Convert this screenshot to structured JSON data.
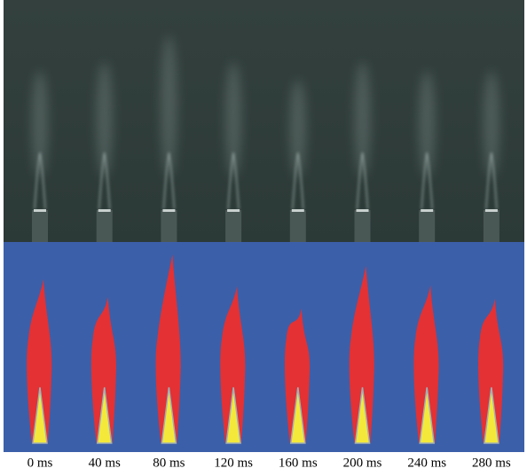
{
  "labels": [
    "0 ms",
    "40 ms",
    "80 ms",
    "120 ms",
    "160 ms",
    "200 ms",
    "240 ms",
    "280 ms"
  ]
}
